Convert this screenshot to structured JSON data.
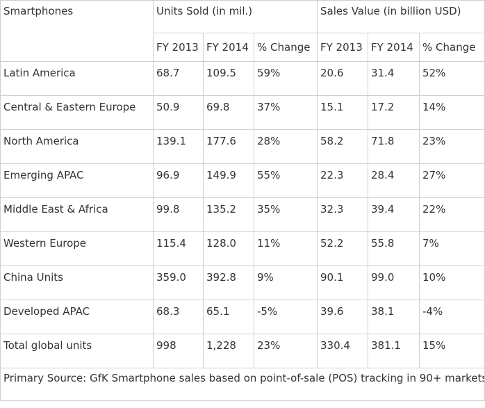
{
  "chart_data": {
    "type": "table",
    "corner_header": "Smartphones",
    "group_headers": [
      {
        "label": "Units Sold (in mil.)",
        "span": 3
      },
      {
        "label": "Sales Value (in billion USD)",
        "span": 3
      }
    ],
    "sub_headers": [
      "FY 2013",
      "FY 2014",
      "% Change",
      "FY 2013",
      "FY 2014",
      "% Change"
    ],
    "rows": [
      {
        "region": "Latin America",
        "cells": [
          "68.7",
          "109.5",
          "59%",
          "20.6",
          "31.4",
          "52%"
        ]
      },
      {
        "region": "Central & Eastern Europe",
        "cells": [
          "50.9",
          "69.8",
          "37%",
          "15.1",
          "17.2",
          "14%"
        ]
      },
      {
        "region": "North America",
        "cells": [
          "139.1",
          "177.6",
          "28%",
          "58.2",
          "71.8",
          "23%"
        ]
      },
      {
        "region": "Emerging APAC",
        "cells": [
          "96.9",
          "149.9",
          "55%",
          "22.3",
          "28.4",
          "27%"
        ]
      },
      {
        "region": "Middle East & Africa",
        "cells": [
          "99.8",
          "135.2",
          "35%",
          "32.3",
          "39.4",
          "22%"
        ]
      },
      {
        "region": "Western Europe",
        "cells": [
          "115.4",
          "128.0",
          "11%",
          "52.2",
          "55.8",
          "7%"
        ]
      },
      {
        "region": "China Units",
        "cells": [
          "359.0",
          "392.8",
          "9%",
          "90.1",
          "99.0",
          "10%"
        ]
      },
      {
        "region": "Developed APAC",
        "cells": [
          "68.3",
          "65.1",
          "-5%",
          "39.6",
          "38.1",
          "-4%"
        ]
      },
      {
        "region": "Total global units",
        "cells": [
          "998",
          "1,228",
          "23%",
          "330.4",
          "381.1",
          "15%"
        ]
      }
    ],
    "footer": "Primary Source: GfK Smartphone sales based on point-of-sale (POS) tracking in 90+ markets"
  },
  "colors": {
    "text": "#333333",
    "border": "#cfcfcf",
    "background": "#ffffff"
  }
}
